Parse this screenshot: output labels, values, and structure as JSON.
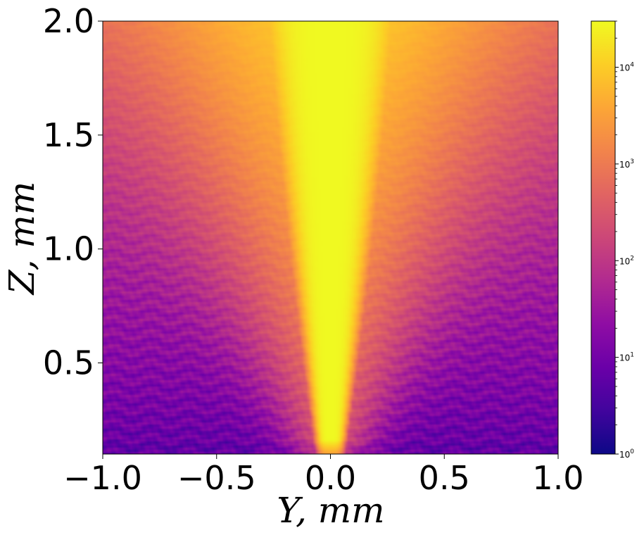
{
  "chart_data": {
    "type": "heatmap",
    "title": "",
    "xlabel": "Y, mm",
    "ylabel": "Z, mm",
    "xlim": [
      -1.0,
      1.0
    ],
    "ylim": [
      0.1,
      2.0
    ],
    "x_ticks": [
      -1.0,
      -0.5,
      0.0,
      0.5,
      1.0
    ],
    "x_tick_labels": [
      "−1.0",
      "−0.5",
      "0.0",
      "0.5",
      "1.0"
    ],
    "y_ticks": [
      0.5,
      1.0,
      1.5,
      2.0
    ],
    "y_tick_labels": [
      "0.5",
      "1.0",
      "1.5",
      "2.0"
    ],
    "grid": false,
    "colormap": "plasma",
    "colorbar": {
      "scale": "log",
      "range": [
        1,
        30000
      ],
      "ticks": [
        1,
        10,
        100,
        1000,
        10000
      ],
      "tick_labels": [
        "10^0",
        "10^1",
        "10^2",
        "10^3",
        "10^4"
      ]
    },
    "field": {
      "description_values": "approximate intensity profile: narrow bright jet centred at Y=0, widening with Z",
      "peak_value": 30000,
      "background_at_z_min": 6,
      "background_at_z_max": 250,
      "jet_half_width_at_z_min_mm": 0.07,
      "jet_half_width_at_z_max_mm": 0.35
    }
  }
}
